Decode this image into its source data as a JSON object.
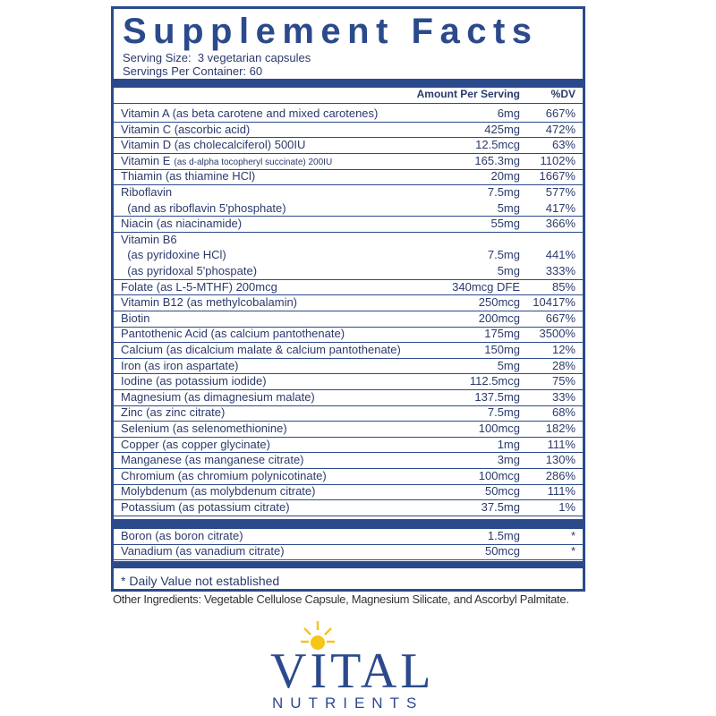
{
  "panel": {
    "title": "Supplement Facts",
    "serving_size": "Serving Size:  3 vegetarian capsules",
    "servings_per_container": "Servings Per Container: 60",
    "header": {
      "amount": "Amount Per Serving",
      "dv": "%DV"
    },
    "rows": [
      {
        "lines": [
          {
            "name": "Vitamin A (as beta carotene and mixed carotenes)",
            "amount": "6mg",
            "dv": "667%"
          }
        ]
      },
      {
        "lines": [
          {
            "name": "Vitamin C (ascorbic acid)",
            "amount": "425mg",
            "dv": "472%"
          }
        ]
      },
      {
        "lines": [
          {
            "name": "Vitamin D (as cholecalciferol) 500IU",
            "amount": "12.5mcg",
            "dv": "63%"
          }
        ]
      },
      {
        "lines": [
          {
            "name": "Vitamin E",
            "note": "(as d-alpha tocopheryl succinate) 200IU",
            "amount": "165.3mg",
            "dv": "1102%"
          }
        ]
      },
      {
        "lines": [
          {
            "name": "Thiamin (as thiamine HCl)",
            "amount": "20mg",
            "dv": "1667%"
          }
        ]
      },
      {
        "lines": [
          {
            "name": "Riboflavin",
            "amount": "7.5mg",
            "dv": "577%"
          },
          {
            "name": "  (and as riboflavin 5'phosphate)",
            "amount": "5mg",
            "dv": "417%"
          }
        ]
      },
      {
        "lines": [
          {
            "name": "Niacin (as niacinamide)",
            "amount": "55mg",
            "dv": "366%"
          }
        ]
      },
      {
        "lines": [
          {
            "name": "Vitamin B6"
          },
          {
            "name": "  (as pyridoxine HCl)",
            "amount": "7.5mg",
            "dv": "441%"
          },
          {
            "name": "  (as pyridoxal 5'phospate)",
            "amount": "5mg",
            "dv": "333%"
          }
        ]
      },
      {
        "lines": [
          {
            "name": "Folate (as L-5-MTHF) 200mcg",
            "amount": "340mcg DFE",
            "dv": "85%"
          }
        ]
      },
      {
        "lines": [
          {
            "name": "Vitamin B12 (as methylcobalamin)",
            "amount": "250mcg",
            "dv": "10417%"
          }
        ]
      },
      {
        "lines": [
          {
            "name": "Biotin",
            "amount": "200mcg",
            "dv": "667%"
          }
        ]
      },
      {
        "lines": [
          {
            "name": "Pantothenic Acid (as calcium pantothenate)",
            "amount": "175mg",
            "dv": "3500%"
          }
        ]
      },
      {
        "lines": [
          {
            "name": "Calcium (as dicalcium malate & calcium pantothenate)",
            "amount": "150mg",
            "dv": "12%"
          }
        ]
      },
      {
        "lines": [
          {
            "name": "Iron (as iron aspartate)",
            "amount": "5mg",
            "dv": "28%"
          }
        ]
      },
      {
        "lines": [
          {
            "name": "Iodine (as potassium iodide)",
            "amount": "112.5mcg",
            "dv": "75%"
          }
        ]
      },
      {
        "lines": [
          {
            "name": "Magnesium (as dimagnesium malate)",
            "amount": "137.5mg",
            "dv": "33%"
          }
        ]
      },
      {
        "lines": [
          {
            "name": "Zinc (as zinc citrate)",
            "amount": "7.5mg",
            "dv": "68%"
          }
        ]
      },
      {
        "lines": [
          {
            "name": "Selenium (as selenomethionine)",
            "amount": "100mcg",
            "dv": "182%"
          }
        ]
      },
      {
        "lines": [
          {
            "name": "Copper (as copper glycinate)",
            "amount": "1mg",
            "dv": "111%"
          }
        ]
      },
      {
        "lines": [
          {
            "name": "Manganese (as manganese citrate)",
            "amount": "3mg",
            "dv": "130%"
          }
        ]
      },
      {
        "lines": [
          {
            "name": "Chromium (as chromium polynicotinate)",
            "amount": "100mcg",
            "dv": "286%"
          }
        ]
      },
      {
        "lines": [
          {
            "name": "Molybdenum (as molybdenum citrate)",
            "amount": "50mcg",
            "dv": "111%"
          }
        ]
      },
      {
        "lines": [
          {
            "name": "Potassium (as potassium citrate)",
            "amount": "37.5mg",
            "dv": "1%"
          }
        ]
      }
    ],
    "rows2": [
      {
        "lines": [
          {
            "name": "Boron (as boron citrate)",
            "amount": "1.5mg",
            "dv": "*"
          }
        ]
      },
      {
        "lines": [
          {
            "name": "Vanadium (as vanadium citrate)",
            "amount": "50mcg",
            "dv": "*"
          }
        ]
      }
    ],
    "footnote": "* Daily Value not established"
  },
  "other_ingredients": "Other Ingredients: Vegetable Cellulose Capsule, Magnesium Silicate, and Ascorbyl Palmitate.",
  "logo": {
    "word": "VITAL",
    "sub": "NUTRIENTS"
  }
}
